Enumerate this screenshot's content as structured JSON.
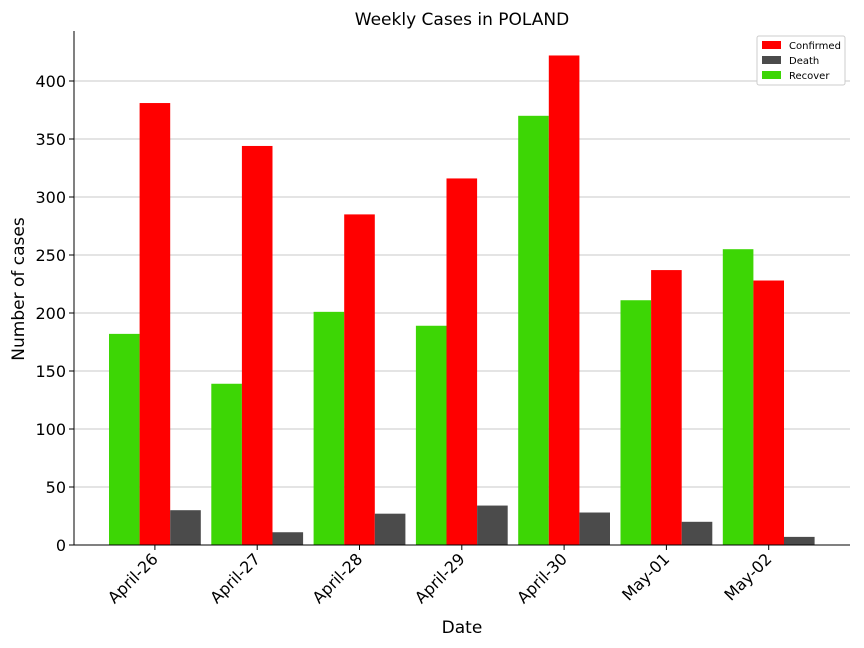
{
  "chart_data": {
    "type": "bar",
    "title": "Weekly Cases in POLAND",
    "xlabel": "Date",
    "ylabel": "Number of cases",
    "categories": [
      "April-26",
      "April-27",
      "April-28",
      "April-29",
      "April-30",
      "May-01",
      "May-02"
    ],
    "series": [
      {
        "name": "Recover",
        "color": "#3dd605",
        "values": [
          182,
          139,
          201,
          189,
          370,
          211,
          255
        ]
      },
      {
        "name": "Confirmed",
        "color": "#ff0000",
        "values": [
          381,
          344,
          285,
          316,
          422,
          237,
          228
        ]
      },
      {
        "name": "Death",
        "color": "#4b4b4b",
        "values": [
          30,
          11,
          27,
          34,
          28,
          20,
          7
        ]
      }
    ],
    "legend_order": [
      "Confirmed",
      "Death",
      "Recover"
    ],
    "legend_position": "top-right",
    "ylim": [
      0,
      440
    ],
    "yticks": [
      0,
      50,
      100,
      150,
      200,
      250,
      300,
      350,
      400
    ],
    "grid": "horizontal",
    "grid_color": "#c8c8c8"
  }
}
